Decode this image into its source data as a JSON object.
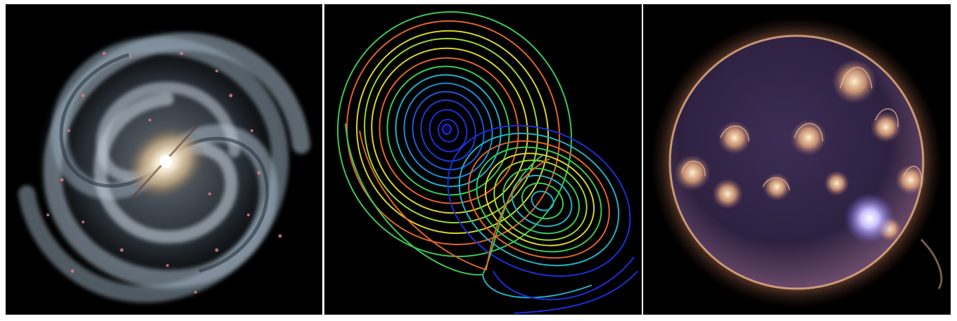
{
  "panels": [
    {
      "subject": "spiral-galaxy"
    },
    {
      "subject": "lorenz-attractor"
    },
    {
      "subject": "sun"
    }
  ],
  "colors": {
    "background": "#000000",
    "divider": "#ffffff",
    "galaxy_arm": "#a9bccb",
    "galaxy_core": "#f0e3c8",
    "galaxy_nebula": "#d67b86",
    "attractor_blue": "#1b2fd8",
    "attractor_cyan": "#1fb2c8",
    "attractor_green": "#39c85a",
    "attractor_yellow": "#d6d62a",
    "attractor_orange": "#e0642a",
    "sun_disk": "#3a2a4a",
    "sun_glow": "#ffc78a",
    "sun_flare": "#9a8cff"
  }
}
